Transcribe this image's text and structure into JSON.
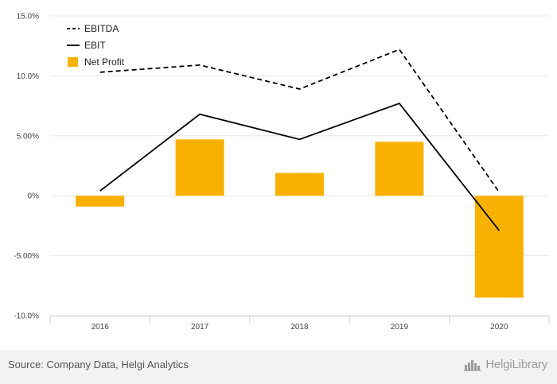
{
  "chart_data": {
    "type": "bar",
    "categories": [
      "2016",
      "2017",
      "2018",
      "2019",
      "2020"
    ],
    "series": [
      {
        "name": "EBITDA",
        "type": "line",
        "style": "dashed",
        "color": "#000000",
        "values": [
          10.3,
          10.9,
          8.9,
          12.2,
          0.3
        ]
      },
      {
        "name": "EBIT",
        "type": "line",
        "style": "solid",
        "color": "#000000",
        "values": [
          0.4,
          6.8,
          4.7,
          7.7,
          -2.9
        ]
      },
      {
        "name": "Net Profit",
        "type": "bar",
        "color": "#F8B100",
        "values": [
          -0.9,
          4.7,
          1.9,
          4.5,
          -8.5
        ]
      }
    ],
    "ylim": [
      -10,
      15
    ],
    "yticks": [
      -10,
      -5,
      0,
      5,
      10,
      15
    ],
    "ytick_labels": [
      "-10.0%",
      "-5.00%",
      "0%",
      "5.00%",
      "10.0%",
      "15.0%"
    ],
    "grid": true,
    "legend_position": "top-left",
    "title": "",
    "xlabel": "",
    "ylabel": ""
  },
  "footer": {
    "source": "Source: Company Data, Helgi Analytics",
    "brand": "HelgiLibrary"
  }
}
